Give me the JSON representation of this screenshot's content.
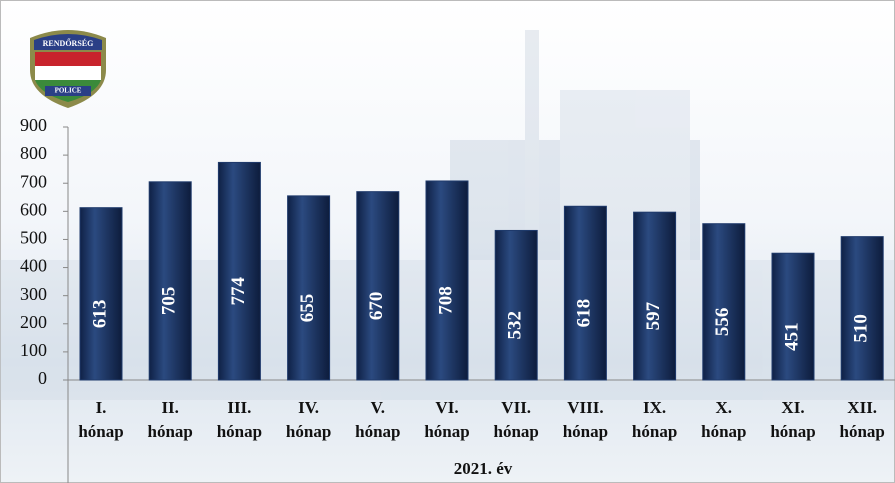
{
  "logo": {
    "top": "RENDŐRSÉG",
    "bottom": "POLICE"
  },
  "chart_data": {
    "type": "bar",
    "categories": [
      "I. hónap",
      "II. hónap",
      "III. hónap",
      "IV. hónap",
      "V. hónap",
      "VI. hónap",
      "VII. hónap",
      "VIII. hónap",
      "IX. hónap",
      "X. hónap",
      "XI. hónap",
      "XII. hónap"
    ],
    "values": [
      613,
      705,
      774,
      655,
      670,
      708,
      532,
      618,
      597,
      556,
      451,
      510
    ],
    "color": "#1f3a6b",
    "x_label": "2021. év",
    "ylim": [
      0,
      900
    ],
    "yticks": [
      0,
      100,
      200,
      300,
      400,
      500,
      600,
      700,
      800,
      900
    ],
    "grid": false
  }
}
